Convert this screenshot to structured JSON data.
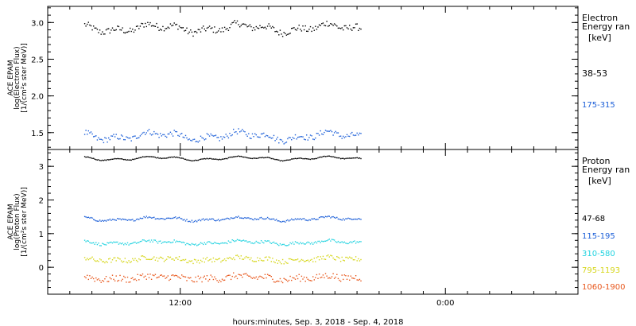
{
  "figure": {
    "xlabel": "hours:minutes, Sep.  3, 2018 - Sep.  4, 2018",
    "x_ticklabels": [
      "12:00",
      "0:00"
    ]
  },
  "chart_data": [
    {
      "type": "scatter",
      "ylabel": [
        "ACE EPAM",
        "log(Electron Flux)",
        "[1/(cm²s ster MeV)]"
      ],
      "legend_title": [
        "Electron",
        "Energy ran",
        "[keV]"
      ],
      "legend_placement": "right",
      "ylim": [
        1.27,
        3.22
      ],
      "yticks": [
        1.5,
        2.0,
        2.5,
        3.0
      ],
      "ytick_labels": [
        "1.5",
        "2.0",
        "2.5",
        "3.0"
      ],
      "x_range_hours": [
        0,
        48
      ],
      "x_ticks_hours": [
        12,
        36
      ],
      "series": [
        {
          "name": "38-53",
          "color": "#000000",
          "start_hour": 3.3,
          "end_hour": 28.3,
          "level": 2.93,
          "noise": 0.045
        },
        {
          "name": "175-315",
          "color": "#1c5fd8",
          "start_hour": 3.3,
          "end_hour": 28.3,
          "level": 1.46,
          "noise": 0.04
        }
      ]
    },
    {
      "type": "scatter",
      "ylabel": [
        "ACE EPAM",
        "log(Proton Flux)",
        "[1/(cm²s ster MeV)]"
      ],
      "legend_title": [
        "Proton",
        "Energy ran",
        "[keV]"
      ],
      "legend_placement": "right",
      "ylim": [
        -0.8,
        3.5
      ],
      "yticks": [
        0,
        1,
        2,
        3
      ],
      "ytick_labels": [
        "0",
        "1",
        "2",
        "3"
      ],
      "x_range_hours": [
        0,
        48
      ],
      "x_ticks_hours": [
        12,
        36
      ],
      "series": [
        {
          "name": "47-68",
          "color": "#000000",
          "start_hour": 3.3,
          "end_hour": 28.3,
          "level": 3.25,
          "noise": 0.01
        },
        {
          "name": "115-195",
          "color": "#1c5fd8",
          "start_hour": 3.3,
          "end_hour": 28.3,
          "level": 1.45,
          "noise": 0.03
        },
        {
          "name": "310-580",
          "color": "#22d3e0",
          "start_hour": 3.3,
          "end_hour": 28.3,
          "level": 0.75,
          "noise": 0.04
        },
        {
          "name": "795-1193",
          "color": "#d6d61a",
          "start_hour": 3.3,
          "end_hour": 28.3,
          "level": 0.25,
          "noise": 0.07
        },
        {
          "name": "1060-1900",
          "color": "#e8571c",
          "start_hour": 3.3,
          "end_hour": 28.3,
          "level": -0.3,
          "noise": 0.1
        }
      ]
    }
  ]
}
